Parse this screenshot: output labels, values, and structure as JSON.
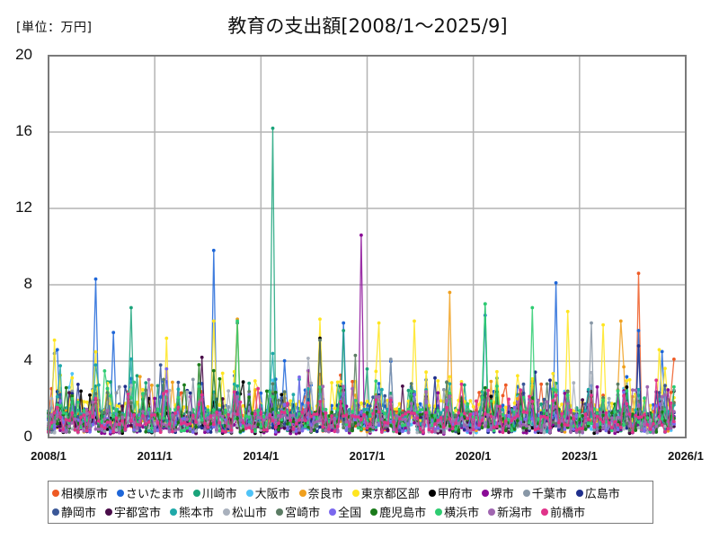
{
  "header": {
    "unit_label": "[単位：万円]",
    "title": "教育の支出額[2008/1〜2025/9]"
  },
  "chart_data": {
    "type": "line",
    "title": "教育の支出額[2008/1〜2025/9]",
    "unit": "万円",
    "xlabel": "",
    "ylabel": "",
    "ylim": [
      0,
      20
    ],
    "yticks": [
      "0",
      "4",
      "8",
      "12",
      "16",
      "20"
    ],
    "xlim": [
      "2008/1",
      "2026/1"
    ],
    "xticks": [
      "2008/1",
      "2011/1",
      "2014/1",
      "2017/1",
      "2020/1",
      "2023/1",
      "2026/1"
    ],
    "grid": true,
    "legend_position": "bottom",
    "markers": true,
    "frequency": "monthly",
    "series": [
      {
        "name": "相模原市",
        "color": "#ee5a24",
        "base": 1.0,
        "peaks": [
          [
            "2024/9",
            8.6
          ],
          [
            "2025/9",
            4.1
          ],
          [
            "2019/9",
            1.4
          ]
        ]
      },
      {
        "name": "さいたま市",
        "color": "#1e66d8",
        "base": 1.2,
        "peaks": [
          [
            "2009/5",
            8.3
          ],
          [
            "2012/9",
            9.8
          ],
          [
            "2020/5",
            6.4
          ],
          [
            "2022/5",
            8.1
          ],
          [
            "2008/3",
            4.4
          ],
          [
            "2009/11",
            5.5
          ],
          [
            "2016/5",
            6.0
          ],
          [
            "2024/9",
            5.6
          ]
        ]
      },
      {
        "name": "川崎市",
        "color": "#1aa37a",
        "base": 1.1,
        "peaks": [
          [
            "2014/5",
            16.2
          ],
          [
            "2010/5",
            6.8
          ],
          [
            "2013/5",
            6.0
          ],
          [
            "2016/5",
            5.6
          ],
          [
            "2020/5",
            7.0
          ]
        ]
      },
      {
        "name": "大阪市",
        "color": "#4fc3f7",
        "base": 0.8,
        "peaks": [
          [
            "2014/5",
            3.0
          ],
          [
            "2021/5",
            2.4
          ]
        ]
      },
      {
        "name": "奈良市",
        "color": "#f0a01e",
        "base": 0.9,
        "peaks": [
          [
            "2019/5",
            7.6
          ],
          [
            "2013/5",
            6.2
          ],
          [
            "2024/3",
            6.1
          ]
        ]
      },
      {
        "name": "東京都区部",
        "color": "#ffe51f",
        "base": 1.3,
        "peaks": [
          [
            "2008/3",
            5.1
          ],
          [
            "2011/5",
            5.2
          ],
          [
            "2012/9",
            6.1
          ],
          [
            "2015/9",
            6.2
          ],
          [
            "2017/5",
            6.0
          ],
          [
            "2018/5",
            6.1
          ],
          [
            "2022/9",
            6.6
          ],
          [
            "2023/9",
            5.9
          ]
        ]
      },
      {
        "name": "甲府市",
        "color": "#000000",
        "base": 0.7,
        "peaks": [
          [
            "2015/9",
            5.2
          ],
          [
            "2020/9",
            1.6
          ]
        ]
      },
      {
        "name": "堺市",
        "color": "#8a0a96",
        "base": 0.6,
        "peaks": [
          [
            "2016/11",
            10.6
          ],
          [
            "2015/5",
            3.5
          ]
        ]
      },
      {
        "name": "千葉市",
        "color": "#8897a6",
        "base": 0.9,
        "peaks": [
          [
            "2017/9",
            4.1
          ],
          [
            "2023/5",
            6.0
          ]
        ]
      },
      {
        "name": "広島市",
        "color": "#1f2f8c",
        "base": 0.9,
        "peaks": [
          [
            "2022/3",
            3.0
          ],
          [
            "2024/9",
            4.8
          ]
        ]
      },
      {
        "name": "静岡市",
        "color": "#3b5898",
        "base": 0.9,
        "peaks": [
          [
            "2011/3",
            3.8
          ]
        ]
      },
      {
        "name": "宇都宮市",
        "color": "#4a0d4a",
        "base": 0.8,
        "peaks": [
          [
            "2012/5",
            4.2
          ]
        ]
      },
      {
        "name": "熊本市",
        "color": "#1fa9a9",
        "base": 1.0,
        "peaks": [
          [
            "2014/5",
            4.4
          ],
          [
            "2009/5",
            3.8
          ]
        ]
      },
      {
        "name": "松山市",
        "color": "#a9b1bd",
        "base": 0.8,
        "peaks": [
          [
            "2023/5",
            3.4
          ]
        ]
      },
      {
        "name": "宮崎市",
        "color": "#5b7c64",
        "base": 0.9,
        "peaks": [
          [
            "2015/9",
            5.1
          ],
          [
            "2016/9",
            4.3
          ]
        ]
      },
      {
        "name": "全国",
        "color": "#7b68ee",
        "base": 0.9,
        "peaks": []
      },
      {
        "name": "鹿児島市",
        "color": "#1a7a1a",
        "base": 0.9,
        "peaks": [
          [
            "2012/9",
            3.5
          ]
        ]
      },
      {
        "name": "横浜市",
        "color": "#2ecc71",
        "base": 1.0,
        "peaks": [
          [
            "2020/5",
            7.0
          ],
          [
            "2021/9",
            6.8
          ],
          [
            "2013/5",
            6.1
          ]
        ]
      },
      {
        "name": "新潟市",
        "color": "#a066b0",
        "base": 0.8,
        "peaks": [
          [
            "2018/9",
            2.4
          ]
        ]
      },
      {
        "name": "前橋市",
        "color": "#e0338a",
        "base": 0.9,
        "peaks": [
          [
            "2025/3",
            3.0
          ]
        ]
      }
    ]
  },
  "legend": {
    "rows": [
      [
        0,
        1,
        2,
        3,
        4,
        5,
        6,
        7,
        8,
        9
      ],
      [
        10,
        11,
        12,
        13,
        14,
        15,
        16,
        17,
        18,
        19
      ]
    ]
  }
}
